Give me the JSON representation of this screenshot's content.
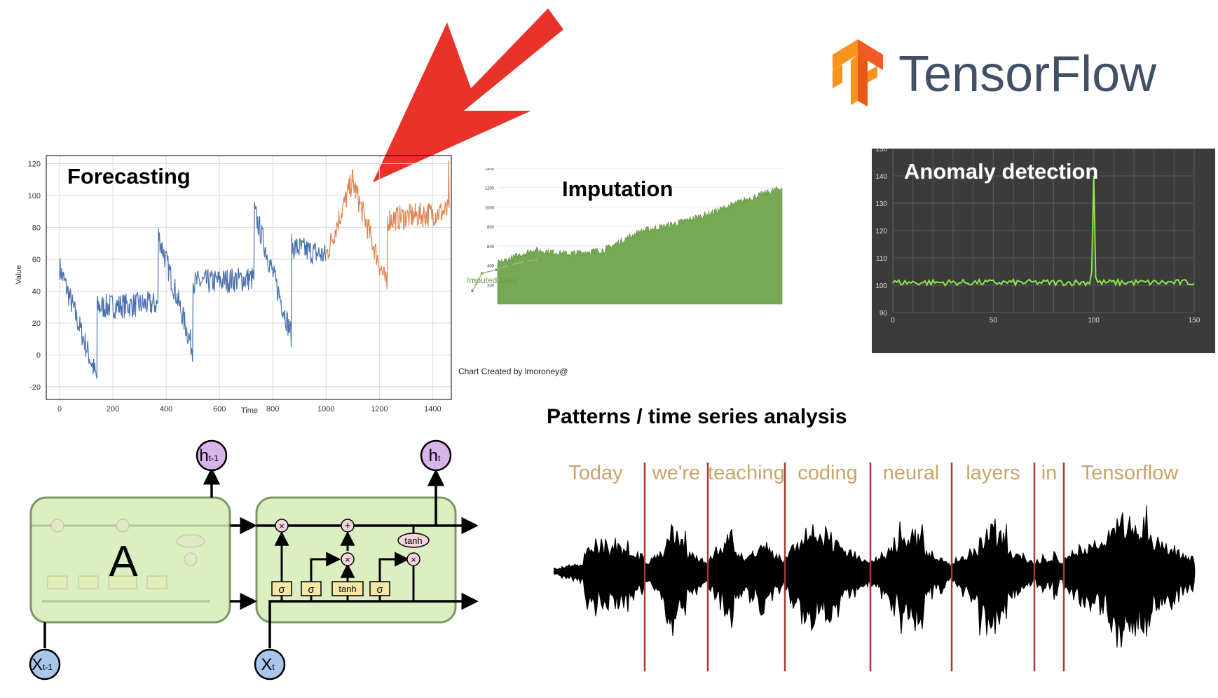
{
  "logo": {
    "name": "TensorFlow",
    "colors": {
      "orange": "#F7931E",
      "dark_orange": "#E55B13",
      "text": "#425066"
    }
  },
  "arrow": {
    "color": "#E8322A"
  },
  "forecasting": {
    "title": "Forecasting",
    "ylabel": "Value",
    "xlabel": "Time",
    "xticks": [
      "0",
      "200",
      "400",
      "600",
      "800",
      "1000",
      "1200",
      "1400"
    ],
    "yticks": [
      "-20",
      "0",
      "20",
      "40",
      "60",
      "80",
      "100",
      "120"
    ],
    "xlim": [
      -50,
      1470
    ],
    "ylim": [
      -28,
      125
    ],
    "colors": {
      "history": "#4c72b0",
      "forecast": "#dd8452"
    }
  },
  "imputation": {
    "title": "Imputation",
    "inset_label": "Imputed Data",
    "credit": "Chart Created by lmoroney@",
    "yticks": [
      "200",
      "400",
      "600",
      "800",
      "1000",
      "1200",
      "1400"
    ],
    "ylim": [
      0,
      1400
    ],
    "color": "#77a853"
  },
  "anomaly": {
    "title": "Anomaly detection",
    "yticks": [
      "90",
      "100",
      "110",
      "120",
      "130",
      "140",
      "150"
    ],
    "xticks": [
      "0",
      "50",
      "100",
      "150"
    ],
    "xlim": [
      0,
      150
    ],
    "ylim": [
      90,
      150
    ],
    "colors": {
      "background": "#3b3b3b",
      "line": "#8ee84a"
    }
  },
  "patterns": {
    "title": "Patterns / time series analysis",
    "words": [
      "Today",
      "we're",
      "teaching",
      "coding",
      "neural",
      "layers",
      "in",
      "Tensorflow"
    ]
  },
  "lstm": {
    "cell_label": "A",
    "h_prev": "h",
    "h_prev_sub": "t-1",
    "h_cur": "h",
    "h_cur_sub": "t",
    "x_prev": "X",
    "x_prev_sub": "t-1",
    "x_cur": "X",
    "x_cur_sub": "t",
    "sigma": "σ",
    "tanh": "tanh",
    "times": "×",
    "plus": "+"
  },
  "chart_data": [
    {
      "type": "line",
      "title": "Forecasting",
      "xlabel": "Time",
      "ylabel": "Value",
      "xlim": [
        -50,
        1470
      ],
      "ylim": [
        -28,
        125
      ],
      "grid": true,
      "series": [
        {
          "x": [
            0,
            140,
            141,
            370,
            371,
            500,
            501,
            730,
            731,
            870,
            871,
            1000
          ],
          "y": [
            55,
            -15,
            30,
            32,
            75,
            3,
            45,
            48,
            90,
            12,
            68,
            62
          ]
        },
        {
          "x": [
            1000,
            1100,
            1101,
            1230,
            1231,
            1460
          ],
          "y": [
            62,
            110,
            108,
            42,
            85,
            90
          ]
        }
      ]
    },
    {
      "type": "area",
      "title": "Imputation",
      "ylim": [
        0,
        1400
      ],
      "x": [
        0,
        50,
        100,
        150,
        200,
        250,
        300,
        350,
        400
      ],
      "y": [
        420,
        560,
        520,
        560,
        750,
        830,
        940,
        1080,
        1200
      ]
    },
    {
      "type": "line",
      "title": "Anomaly detection",
      "xlim": [
        0,
        150
      ],
      "ylim": [
        90,
        150
      ],
      "grid": true,
      "x": [
        0,
        98,
        100,
        102,
        150
      ],
      "y": [
        101,
        101,
        140,
        101,
        101
      ]
    }
  ]
}
